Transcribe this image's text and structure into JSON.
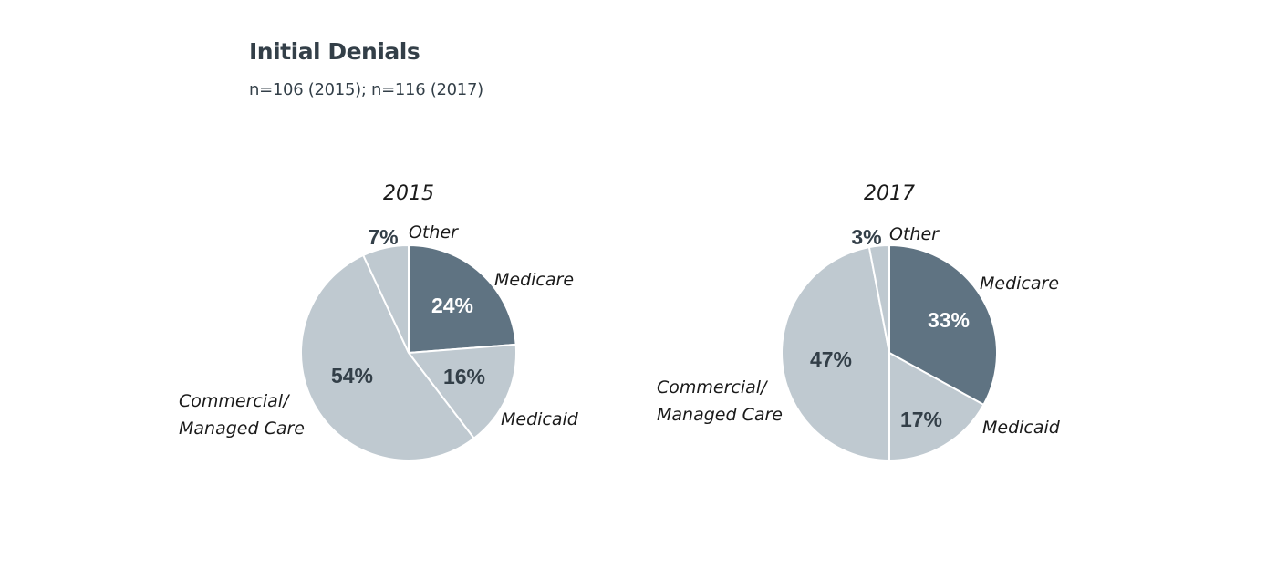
{
  "header": {
    "title": "Initial Denials",
    "subtitle": "n=106 (2015); n=116 (2017)"
  },
  "colors": {
    "dark": "#5f7382",
    "light": "#bfc9d0",
    "label_dark": "#333f48",
    "label_light": "#ffffff",
    "separator": "#ffffff"
  },
  "chart_data": [
    {
      "type": "pie",
      "title": "2015",
      "slices": [
        {
          "label": "Medicare",
          "value": 24,
          "display": "24%",
          "color": "dark"
        },
        {
          "label": "Medicaid",
          "value": 16,
          "display": "16%",
          "color": "light"
        },
        {
          "label": "Commercial/\nManaged Care",
          "value": 54,
          "display": "54%",
          "color": "light"
        },
        {
          "label": "Other",
          "value": 7,
          "display": "7%",
          "color": "light"
        }
      ]
    },
    {
      "type": "pie",
      "title": "2017",
      "slices": [
        {
          "label": "Medicare",
          "value": 33,
          "display": "33%",
          "color": "dark"
        },
        {
          "label": "Medicaid",
          "value": 17,
          "display": "17%",
          "color": "light"
        },
        {
          "label": "Commercial/\nManaged Care",
          "value": 47,
          "display": "47%",
          "color": "light"
        },
        {
          "label": "Other",
          "value": 3,
          "display": "3%",
          "color": "light"
        }
      ]
    }
  ]
}
